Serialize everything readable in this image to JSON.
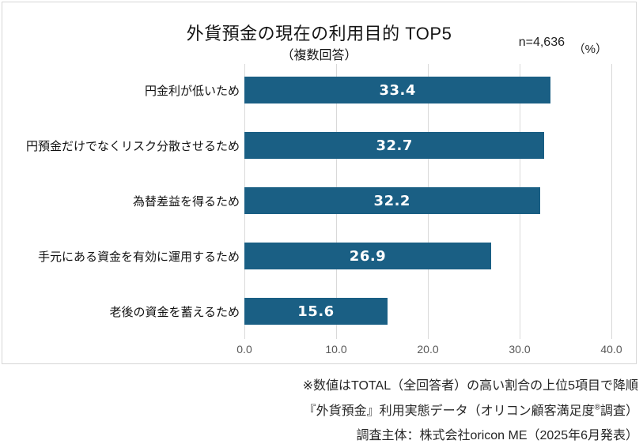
{
  "chart_data": {
    "type": "bar",
    "orientation": "horizontal",
    "title": "外貨預金の現在の利用目的 TOP5",
    "subtitle": "（複数回答）",
    "sample_size_label": "n=4,636",
    "unit_label": "（%）",
    "categories": [
      "円金利が低いため",
      "円預金だけでなくリスク分散させるため",
      "為替差益を得るため",
      "手元にある資金を有効に運用するため",
      "老後の資金を蓄えるため"
    ],
    "values": [
      33.4,
      32.7,
      32.2,
      26.9,
      15.6
    ],
    "xlim": [
      0,
      40
    ],
    "xtick_labels": [
      "0.0",
      "10.0",
      "20.0",
      "30.0",
      "40.0"
    ],
    "grid": true,
    "legend": false,
    "bar_color": "#1a5f84",
    "gridline_color": "#d9d9d9",
    "axis_label_color": "#595959",
    "value_label_color": "#ffffff"
  },
  "footer": {
    "note": "※数値はTOTAL（全回答者）の高い割合の上位5項目で降順",
    "source_prefix": "『外貨預金』利用実態データ（オリコン顧客満足度",
    "source_sup": "®",
    "source_suffix": "調査）",
    "publisher": "調査主体：株式会社oricon ME（2025年6月発表）"
  }
}
